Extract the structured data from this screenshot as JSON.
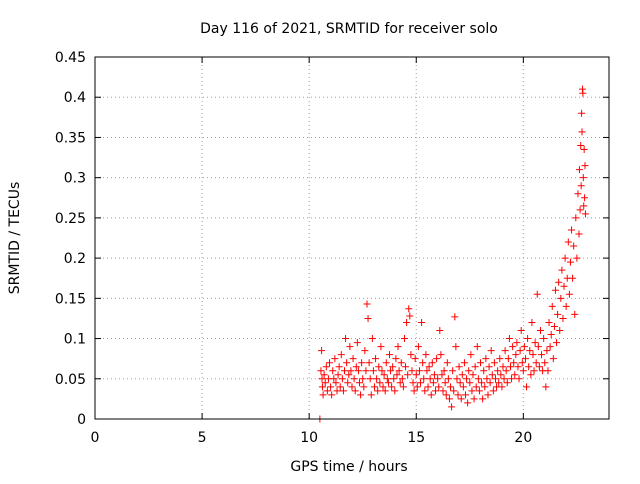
{
  "chart_data": {
    "type": "scatter",
    "title": "Day 116 of 2021, SRMTID for receiver solo",
    "xlabel": "GPS time / hours",
    "ylabel": "SRMTID / TECUs",
    "xlim": [
      0,
      24
    ],
    "ylim": [
      0,
      0.45
    ],
    "x_ticks": [
      0,
      5,
      10,
      15,
      20
    ],
    "x_tick_labels": [
      "0",
      "5",
      "10",
      "15",
      "20"
    ],
    "y_ticks": [
      0,
      0.05,
      0.1,
      0.15,
      0.2,
      0.25,
      0.3,
      0.35,
      0.4,
      0.45
    ],
    "y_tick_labels": [
      "0",
      "0.05",
      "0.1",
      "0.15",
      "0.2",
      "0.25",
      "0.3",
      "0.35",
      "0.4",
      "0.45"
    ],
    "grid": true,
    "marker": "+",
    "series": [
      {
        "name": "SRMTID",
        "color": "#ff0000",
        "points": [
          [
            10.55,
            0.06
          ],
          [
            10.58,
            0.085
          ],
          [
            10.6,
            0.05
          ],
          [
            10.62,
            0.04
          ],
          [
            10.65,
            0.03
          ],
          [
            10.7,
            0.055
          ],
          [
            10.75,
            0.045
          ],
          [
            10.8,
            0.065
          ],
          [
            10.85,
            0.035
          ],
          [
            10.9,
            0.05
          ],
          [
            10.95,
            0.07
          ],
          [
            11.0,
            0.04
          ],
          [
            11.05,
            0.03
          ],
          [
            11.1,
            0.06
          ],
          [
            11.15,
            0.05
          ],
          [
            11.2,
            0.075
          ],
          [
            11.25,
            0.045
          ],
          [
            11.3,
            0.035
          ],
          [
            11.35,
            0.055
          ],
          [
            11.4,
            0.065
          ],
          [
            11.45,
            0.04
          ],
          [
            11.5,
            0.08
          ],
          [
            11.55,
            0.05
          ],
          [
            11.6,
            0.035
          ],
          [
            11.65,
            0.06
          ],
          [
            11.7,
            0.1
          ],
          [
            11.75,
            0.07
          ],
          [
            11.8,
            0.045
          ],
          [
            11.85,
            0.055
          ],
          [
            11.9,
            0.09
          ],
          [
            11.95,
            0.06
          ],
          [
            12.0,
            0.04
          ],
          [
            12.05,
            0.075
          ],
          [
            12.1,
            0.05
          ],
          [
            12.15,
            0.035
          ],
          [
            12.2,
            0.065
          ],
          [
            12.25,
            0.095
          ],
          [
            12.3,
            0.06
          ],
          [
            12.35,
            0.045
          ],
          [
            12.4,
            0.03
          ],
          [
            12.45,
            0.07
          ],
          [
            12.5,
            0.05
          ],
          [
            12.55,
            0.04
          ],
          [
            12.6,
            0.085
          ],
          [
            12.65,
            0.06
          ],
          [
            12.7,
            0.143
          ],
          [
            12.75,
            0.125
          ],
          [
            12.8,
            0.07
          ],
          [
            12.85,
            0.05
          ],
          [
            12.9,
            0.03
          ],
          [
            12.95,
            0.1
          ],
          [
            13.0,
            0.06
          ],
          [
            13.05,
            0.04
          ],
          [
            13.1,
            0.075
          ],
          [
            13.15,
            0.05
          ],
          [
            13.2,
            0.035
          ],
          [
            13.25,
            0.065
          ],
          [
            13.3,
            0.045
          ],
          [
            13.35,
            0.09
          ],
          [
            13.4,
            0.06
          ],
          [
            13.45,
            0.04
          ],
          [
            13.5,
            0.055
          ],
          [
            13.55,
            0.035
          ],
          [
            13.6,
            0.07
          ],
          [
            13.65,
            0.05
          ],
          [
            13.7,
            0.045
          ],
          [
            13.75,
            0.08
          ],
          [
            13.8,
            0.06
          ],
          [
            13.85,
            0.04
          ],
          [
            13.9,
            0.065
          ],
          [
            13.95,
            0.05
          ],
          [
            14.0,
            0.035
          ],
          [
            14.05,
            0.075
          ],
          [
            14.1,
            0.055
          ],
          [
            14.15,
            0.09
          ],
          [
            14.2,
            0.06
          ],
          [
            14.25,
            0.045
          ],
          [
            14.3,
            0.07
          ],
          [
            14.35,
            0.05
          ],
          [
            14.4,
            0.04
          ],
          [
            14.45,
            0.1
          ],
          [
            14.5,
            0.065
          ],
          [
            14.55,
            0.12
          ],
          [
            14.6,
            0.055
          ],
          [
            14.65,
            0.137
          ],
          [
            14.7,
            0.128
          ],
          [
            14.75,
            0.08
          ],
          [
            14.8,
            0.06
          ],
          [
            14.85,
            0.045
          ],
          [
            14.9,
            0.035
          ],
          [
            14.95,
            0.075
          ],
          [
            15.0,
            0.055
          ],
          [
            15.05,
            0.04
          ],
          [
            15.1,
            0.09
          ],
          [
            15.15,
            0.06
          ],
          [
            15.2,
            0.045
          ],
          [
            15.25,
            0.12
          ],
          [
            15.3,
            0.07
          ],
          [
            15.35,
            0.05
          ],
          [
            15.4,
            0.035
          ],
          [
            15.45,
            0.08
          ],
          [
            15.5,
            0.06
          ],
          [
            15.55,
            0.04
          ],
          [
            15.6,
            0.065
          ],
          [
            15.65,
            0.05
          ],
          [
            15.7,
            0.03
          ],
          [
            15.75,
            0.07
          ],
          [
            15.8,
            0.045
          ],
          [
            15.85,
            0.055
          ],
          [
            15.9,
            0.035
          ],
          [
            15.95,
            0.075
          ],
          [
            16.0,
            0.05
          ],
          [
            16.05,
            0.04
          ],
          [
            16.1,
            0.11
          ],
          [
            16.15,
            0.08
          ],
          [
            16.2,
            0.055
          ],
          [
            16.25,
            0.035
          ],
          [
            16.3,
            0.06
          ],
          [
            16.35,
            0.045
          ],
          [
            16.4,
            0.03
          ],
          [
            16.45,
            0.07
          ],
          [
            16.5,
            0.05
          ],
          [
            16.55,
            0.025
          ],
          [
            16.6,
            0.04
          ],
          [
            16.65,
            0.015
          ],
          [
            16.7,
            0.06
          ],
          [
            16.75,
            0.035
          ],
          [
            16.8,
            0.127
          ],
          [
            16.85,
            0.09
          ],
          [
            16.9,
            0.05
          ],
          [
            16.95,
            0.03
          ],
          [
            17.0,
            0.065
          ],
          [
            17.05,
            0.045
          ],
          [
            17.1,
            0.025
          ],
          [
            17.15,
            0.055
          ],
          [
            17.2,
            0.04
          ],
          [
            17.25,
            0.07
          ],
          [
            17.3,
            0.03
          ],
          [
            17.35,
            0.05
          ],
          [
            17.4,
            0.02
          ],
          [
            17.45,
            0.06
          ],
          [
            17.5,
            0.045
          ],
          [
            17.55,
            0.08
          ],
          [
            17.6,
            0.035
          ],
          [
            17.65,
            0.055
          ],
          [
            17.7,
            0.025
          ],
          [
            17.75,
            0.065
          ],
          [
            17.8,
            0.04
          ],
          [
            17.85,
            0.09
          ],
          [
            17.9,
            0.05
          ],
          [
            17.95,
            0.035
          ],
          [
            18.0,
            0.07
          ],
          [
            18.05,
            0.045
          ],
          [
            18.1,
            0.025
          ],
          [
            18.15,
            0.06
          ],
          [
            18.2,
            0.04
          ],
          [
            18.25,
            0.075
          ],
          [
            18.3,
            0.05
          ],
          [
            18.35,
            0.03
          ],
          [
            18.4,
            0.065
          ],
          [
            18.45,
            0.045
          ],
          [
            18.5,
            0.085
          ],
          [
            18.55,
            0.055
          ],
          [
            18.6,
            0.035
          ],
          [
            18.65,
            0.07
          ],
          [
            18.7,
            0.05
          ],
          [
            18.75,
            0.04
          ],
          [
            18.8,
            0.06
          ],
          [
            18.85,
            0.045
          ],
          [
            18.9,
            0.075
          ],
          [
            18.95,
            0.055
          ],
          [
            19.0,
            0.04
          ],
          [
            19.05,
            0.065
          ],
          [
            19.1,
            0.05
          ],
          [
            19.15,
            0.085
          ],
          [
            19.2,
            0.06
          ],
          [
            19.25,
            0.045
          ],
          [
            19.3,
            0.075
          ],
          [
            19.35,
            0.1
          ],
          [
            19.4,
            0.065
          ],
          [
            19.45,
            0.05
          ],
          [
            19.5,
            0.09
          ],
          [
            19.55,
            0.07
          ],
          [
            19.6,
            0.055
          ],
          [
            19.65,
            0.08
          ],
          [
            19.7,
            0.095
          ],
          [
            19.75,
            0.065
          ],
          [
            19.8,
            0.05
          ],
          [
            19.85,
            0.085
          ],
          [
            19.9,
            0.11
          ],
          [
            19.95,
            0.07
          ],
          [
            20.0,
            0.06
          ],
          [
            20.05,
            0.09
          ],
          [
            20.1,
            0.075
          ],
          [
            20.15,
            0.04
          ],
          [
            20.2,
            0.1
          ],
          [
            20.25,
            0.065
          ],
          [
            20.3,
            0.085
          ],
          [
            20.35,
            0.055
          ],
          [
            20.4,
            0.12
          ],
          [
            20.45,
            0.08
          ],
          [
            20.5,
            0.06
          ],
          [
            20.55,
            0.095
          ],
          [
            20.6,
            0.07
          ],
          [
            20.65,
            0.155
          ],
          [
            20.7,
            0.09
          ],
          [
            20.75,
            0.065
          ],
          [
            20.8,
            0.11
          ],
          [
            20.85,
            0.08
          ],
          [
            20.9,
            0.06
          ],
          [
            20.95,
            0.1
          ],
          [
            21.0,
            0.07
          ],
          [
            21.05,
            0.04
          ],
          [
            21.1,
            0.085
          ],
          [
            21.15,
            0.06
          ],
          [
            21.2,
            0.12
          ],
          [
            21.25,
            0.09
          ],
          [
            21.3,
            0.105
          ],
          [
            21.35,
            0.14
          ],
          [
            21.4,
            0.075
          ],
          [
            21.45,
            0.115
          ],
          [
            21.5,
            0.16
          ],
          [
            21.55,
            0.095
          ],
          [
            21.6,
            0.13
          ],
          [
            21.65,
            0.17
          ],
          [
            21.7,
            0.11
          ],
          [
            21.75,
            0.15
          ],
          [
            21.8,
            0.185
          ],
          [
            21.85,
            0.125
          ],
          [
            21.9,
            0.165
          ],
          [
            21.95,
            0.2
          ],
          [
            22.0,
            0.14
          ],
          [
            22.05,
            0.175
          ],
          [
            22.1,
            0.22
          ],
          [
            22.15,
            0.155
          ],
          [
            22.2,
            0.195
          ],
          [
            22.25,
            0.235
          ],
          [
            22.3,
            0.175
          ],
          [
            22.35,
            0.215
          ],
          [
            22.4,
            0.13
          ],
          [
            22.45,
            0.25
          ],
          [
            22.5,
            0.2
          ],
          [
            22.55,
            0.28
          ],
          [
            22.6,
            0.23
          ],
          [
            22.62,
            0.31
          ],
          [
            22.65,
            0.26
          ],
          [
            22.68,
            0.34
          ],
          [
            22.7,
            0.29
          ],
          [
            22.72,
            0.38
          ],
          [
            22.74,
            0.357
          ],
          [
            22.76,
            0.41
          ],
          [
            22.78,
            0.405
          ],
          [
            22.8,
            0.3
          ],
          [
            22.82,
            0.265
          ],
          [
            22.84,
            0.335
          ],
          [
            22.86,
            0.275
          ],
          [
            22.88,
            0.315
          ],
          [
            22.9,
            0.255
          ],
          [
            10.5,
            0.0
          ]
        ]
      }
    ]
  }
}
